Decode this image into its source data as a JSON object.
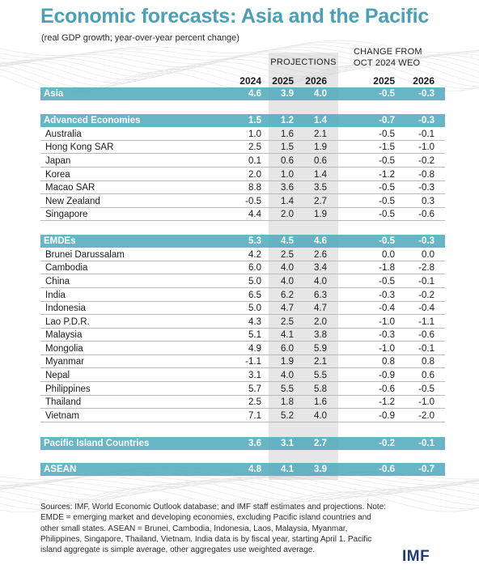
{
  "title": "Economic forecasts: Asia and the Pacific",
  "subtitle": "(real GDP growth; year-over-year percent change)",
  "projections_label": "PROJECTIONS",
  "change_label_line1": "CHANGE FROM",
  "change_label_line2": "OCT 2024 WEO",
  "chart_data": {
    "type": "table",
    "columns": [
      "",
      "2024",
      "2025",
      "2026",
      "2025",
      "2026"
    ],
    "rows": [
      {
        "name": "Asia",
        "kind": "group",
        "values": [
          "4.6",
          "3.9",
          "4.0",
          "-0.5",
          "-0.3"
        ]
      },
      {
        "name": "Advanced Economies",
        "kind": "group",
        "values": [
          "1.5",
          "1.2",
          "1.4",
          "-0.7",
          "-0.3"
        ]
      },
      {
        "name": "Australia",
        "kind": "sub",
        "values": [
          "1.0",
          "1.6",
          "2.1",
          "-0.5",
          "-0.1"
        ]
      },
      {
        "name": "Hong Kong SAR",
        "kind": "sub",
        "values": [
          "2.5",
          "1.5",
          "1.9",
          "-1.5",
          "-1.0"
        ]
      },
      {
        "name": "Japan",
        "kind": "sub",
        "values": [
          "0.1",
          "0.6",
          "0.6",
          "-0.5",
          "-0.2"
        ]
      },
      {
        "name": "Korea",
        "kind": "sub",
        "values": [
          "2.0",
          "1.0",
          "1.4",
          "-1.2",
          "-0.8"
        ]
      },
      {
        "name": "Macao SAR",
        "kind": "sub",
        "values": [
          "8.8",
          "3.6",
          "3.5",
          "-0.5",
          "-0.3"
        ]
      },
      {
        "name": "New Zealand",
        "kind": "sub",
        "values": [
          "-0.5",
          "1.4",
          "2.7",
          "-0.5",
          "0.3"
        ]
      },
      {
        "name": "Singapore",
        "kind": "sub",
        "values": [
          "4.4",
          "2.0",
          "1.9",
          "-0.5",
          "-0.6"
        ]
      },
      {
        "name": "EMDEs",
        "kind": "group",
        "values": [
          "5.3",
          "4.5",
          "4.6",
          "-0.5",
          "-0.3"
        ]
      },
      {
        "name": "Brunei Darussalam",
        "kind": "sub",
        "values": [
          "4.2",
          "2.5",
          "2.6",
          "0.0",
          "0.0"
        ]
      },
      {
        "name": "Cambodia",
        "kind": "sub",
        "values": [
          "6.0",
          "4.0",
          "3.4",
          "-1.8",
          "-2.8"
        ]
      },
      {
        "name": "China",
        "kind": "sub",
        "values": [
          "5.0",
          "4.0",
          "4.0",
          "-0.5",
          "-0.1"
        ]
      },
      {
        "name": "India",
        "kind": "sub",
        "values": [
          "6.5",
          "6.2",
          "6.3",
          "-0.3",
          "-0.2"
        ]
      },
      {
        "name": "Indonesia",
        "kind": "sub",
        "values": [
          "5.0",
          "4.7",
          "4.7",
          "-0.4",
          "-0.4"
        ]
      },
      {
        "name": "Lao P.D.R.",
        "kind": "sub",
        "values": [
          "4.3",
          "2.5",
          "2.0",
          "-1.0",
          "-1.1"
        ]
      },
      {
        "name": "Malaysia",
        "kind": "sub",
        "values": [
          "5.1",
          "4.1",
          "3.8",
          "-0.3",
          "-0.6"
        ]
      },
      {
        "name": "Mongolia",
        "kind": "sub",
        "values": [
          "4.9",
          "6.0",
          "5.9",
          "-1.0",
          "-0.1"
        ]
      },
      {
        "name": "Myanmar",
        "kind": "sub",
        "values": [
          "-1.1",
          "1.9",
          "2.1",
          "0.8",
          "0.8"
        ]
      },
      {
        "name": "Nepal",
        "kind": "sub",
        "values": [
          "3.1",
          "4.0",
          "5.5",
          "-0.9",
          "0.6"
        ]
      },
      {
        "name": "Philippines",
        "kind": "sub",
        "values": [
          "5.7",
          "5.5",
          "5.8",
          "-0.6",
          "-0.5"
        ]
      },
      {
        "name": "Thailand",
        "kind": "sub",
        "values": [
          "2.5",
          "1.8",
          "1.6",
          "-1.2",
          "-1.0"
        ]
      },
      {
        "name": "Vietnam",
        "kind": "sub",
        "values": [
          "7.1",
          "5.2",
          "4.0",
          "-0.9",
          "-2.0"
        ]
      },
      {
        "name": "Pacific Island Countries",
        "kind": "group",
        "values": [
          "3.6",
          "3.1",
          "2.7",
          "-0.2",
          "-0.1"
        ]
      },
      {
        "name": "ASEAN",
        "kind": "group",
        "values": [
          "4.8",
          "4.1",
          "3.9",
          "-0.6",
          "-0.7"
        ]
      }
    ]
  },
  "sources": "Sources: IMF, World Economic Outlook database; and IMF staff estimates and projections. Note: EMDE = emerging market and developing economies, excluding Pacific island countries and other small states. ASEAN = Brunei, Cambodia, Indonesia, Laos, Malaysia, Myanmar, Philippines, Singapore, Thailand, Vietnam. India data is by fiscal year, starting April 1. Pacific island aggregate is simple average, other aggregates use weighted average.",
  "logo": "IMF",
  "colors": {
    "accent": "#4aa0b6",
    "group_row": "#4ea8bc",
    "logo": "#1f3d7a"
  }
}
